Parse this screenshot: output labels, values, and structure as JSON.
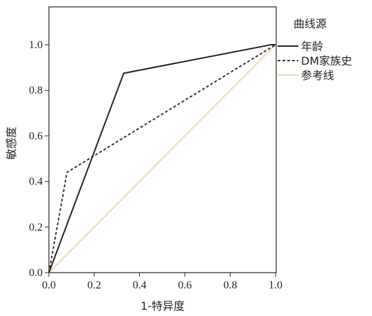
{
  "chart_data": {
    "type": "line",
    "title": "",
    "xlabel": "1-特异度",
    "ylabel": "敏感度",
    "xlim": [
      0,
      1
    ],
    "ylim": [
      0,
      1.15
    ],
    "xticks": [
      0.0,
      0.2,
      0.4,
      0.6,
      0.8,
      1.0
    ],
    "xtick_labels": [
      "0.0",
      "0.2",
      "0.4",
      "0.6",
      "0.8",
      "1.0"
    ],
    "yticks": [
      0.0,
      0.2,
      0.4,
      0.6,
      0.8,
      1.0
    ],
    "ytick_labels": [
      "0.0",
      "0.2",
      "0.4",
      "0.6",
      "0.8",
      "1.0"
    ],
    "grid": false,
    "legend": {
      "title": "曲线源",
      "position": "right"
    },
    "series": [
      {
        "name": "年龄",
        "color": "#222222",
        "style": "solid",
        "x": [
          0.0,
          0.33,
          0.98,
          1.0
        ],
        "y": [
          0.0,
          0.875,
          1.0,
          1.0
        ]
      },
      {
        "name": "DM家族史",
        "color": "#333333",
        "style": "dashed",
        "x": [
          0.0,
          0.08,
          1.0
        ],
        "y": [
          0.0,
          0.44,
          1.0
        ]
      },
      {
        "name": "参考线",
        "color": "#e8d9ad",
        "style": "solid",
        "x": [
          0.0,
          1.0
        ],
        "y": [
          0.0,
          1.0
        ]
      }
    ]
  }
}
